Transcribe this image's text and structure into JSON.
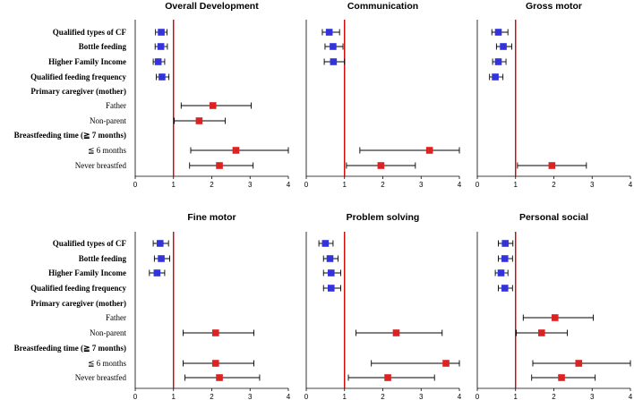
{
  "figure": {
    "categories": [
      {
        "label": "Qualified types of CF",
        "bold": true
      },
      {
        "label": "Bottle feeding",
        "bold": true
      },
      {
        "label": "Higher Family Income",
        "bold": true
      },
      {
        "label": "Qualified feeding frequency",
        "bold": true
      },
      {
        "label": "Primary caregiver (mother)",
        "bold": true
      },
      {
        "label": "Father",
        "bold": false
      },
      {
        "label": "Non-parent",
        "bold": false
      },
      {
        "label": "Breastfeeding time (≧ 7 months)",
        "bold": true
      },
      {
        "label": "≦ 6 months",
        "bold": false
      },
      {
        "label": "Never breastfed",
        "bold": false
      }
    ],
    "x_ticks": [
      "0",
      "1",
      "2",
      "3",
      "4"
    ],
    "colors": {
      "protective": "#3333dd",
      "risk": "#dd2222",
      "reference_line": "#cc0000",
      "whisker": "#000000"
    }
  },
  "chart_data": [
    {
      "type": "forest",
      "title": "Overall Development",
      "xlim": [
        0,
        4
      ],
      "reference": 1,
      "points": [
        {
          "row": 0,
          "est": 0.68,
          "lo": 0.53,
          "hi": 0.83,
          "color": "blue"
        },
        {
          "row": 1,
          "est": 0.67,
          "lo": 0.52,
          "hi": 0.84,
          "color": "blue"
        },
        {
          "row": 2,
          "est": 0.6,
          "lo": 0.47,
          "hi": 0.77,
          "color": "blue"
        },
        {
          "row": 3,
          "est": 0.7,
          "lo": 0.55,
          "hi": 0.88,
          "color": "blue"
        },
        {
          "row": 5,
          "est": 2.03,
          "lo": 1.2,
          "hi": 3.03,
          "color": "red"
        },
        {
          "row": 6,
          "est": 1.67,
          "lo": 1.02,
          "hi": 2.35,
          "color": "red"
        },
        {
          "row": 8,
          "est": 2.63,
          "lo": 1.45,
          "hi": 4.0,
          "color": "red"
        },
        {
          "row": 9,
          "est": 2.2,
          "lo": 1.42,
          "hi": 3.08,
          "color": "red"
        }
      ]
    },
    {
      "type": "forest",
      "title": "Communication",
      "xlim": [
        0,
        4
      ],
      "reference": 1,
      "points": [
        {
          "row": 0,
          "est": 0.6,
          "lo": 0.42,
          "hi": 0.87,
          "color": "blue"
        },
        {
          "row": 1,
          "est": 0.7,
          "lo": 0.49,
          "hi": 0.96,
          "color": "blue"
        },
        {
          "row": 2,
          "est": 0.71,
          "lo": 0.47,
          "hi": 1.0,
          "color": "blue"
        },
        {
          "row": 8,
          "est": 3.22,
          "lo": 1.4,
          "hi": 4.0,
          "color": "red"
        },
        {
          "row": 9,
          "est": 1.95,
          "lo": 1.05,
          "hi": 2.85,
          "color": "red"
        }
      ]
    },
    {
      "type": "forest",
      "title": "Gross motor",
      "xlim": [
        0,
        4
      ],
      "reference": 1,
      "points": [
        {
          "row": 0,
          "est": 0.55,
          "lo": 0.38,
          "hi": 0.8,
          "color": "blue"
        },
        {
          "row": 1,
          "est": 0.68,
          "lo": 0.5,
          "hi": 0.9,
          "color": "blue"
        },
        {
          "row": 2,
          "est": 0.55,
          "lo": 0.4,
          "hi": 0.75,
          "color": "blue"
        },
        {
          "row": 3,
          "est": 0.47,
          "lo": 0.32,
          "hi": 0.67,
          "color": "blue"
        },
        {
          "row": 9,
          "est": 1.95,
          "lo": 1.05,
          "hi": 2.85,
          "color": "red"
        }
      ]
    },
    {
      "type": "forest",
      "title": "Fine motor",
      "xlim": [
        0,
        4
      ],
      "reference": 1,
      "points": [
        {
          "row": 0,
          "est": 0.65,
          "lo": 0.47,
          "hi": 0.87,
          "color": "blue"
        },
        {
          "row": 1,
          "est": 0.68,
          "lo": 0.5,
          "hi": 0.9,
          "color": "blue"
        },
        {
          "row": 2,
          "est": 0.57,
          "lo": 0.37,
          "hi": 0.77,
          "color": "blue"
        },
        {
          "row": 6,
          "est": 2.1,
          "lo": 1.25,
          "hi": 3.1,
          "color": "red"
        },
        {
          "row": 8,
          "est": 2.1,
          "lo": 1.25,
          "hi": 3.1,
          "color": "red"
        },
        {
          "row": 9,
          "est": 2.2,
          "lo": 1.3,
          "hi": 3.25,
          "color": "red"
        }
      ]
    },
    {
      "type": "forest",
      "title": "Problem solving",
      "xlim": [
        0,
        4
      ],
      "reference": 1,
      "points": [
        {
          "row": 0,
          "est": 0.5,
          "lo": 0.33,
          "hi": 0.7,
          "color": "blue"
        },
        {
          "row": 1,
          "est": 0.62,
          "lo": 0.45,
          "hi": 0.83,
          "color": "blue"
        },
        {
          "row": 2,
          "est": 0.65,
          "lo": 0.45,
          "hi": 0.9,
          "color": "blue"
        },
        {
          "row": 3,
          "est": 0.65,
          "lo": 0.45,
          "hi": 0.9,
          "color": "blue"
        },
        {
          "row": 6,
          "est": 2.35,
          "lo": 1.3,
          "hi": 3.55,
          "color": "red"
        },
        {
          "row": 8,
          "est": 3.65,
          "lo": 1.7,
          "hi": 4.0,
          "color": "red"
        },
        {
          "row": 9,
          "est": 2.13,
          "lo": 1.1,
          "hi": 3.35,
          "color": "red"
        }
      ]
    },
    {
      "type": "forest",
      "title": "Personal social",
      "xlim": [
        0,
        4
      ],
      "reference": 1,
      "points": [
        {
          "row": 0,
          "est": 0.73,
          "lo": 0.55,
          "hi": 0.93,
          "color": "blue"
        },
        {
          "row": 1,
          "est": 0.72,
          "lo": 0.55,
          "hi": 0.92,
          "color": "blue"
        },
        {
          "row": 2,
          "est": 0.62,
          "lo": 0.47,
          "hi": 0.8,
          "color": "blue"
        },
        {
          "row": 3,
          "est": 0.72,
          "lo": 0.55,
          "hi": 0.92,
          "color": "blue"
        },
        {
          "row": 5,
          "est": 2.03,
          "lo": 1.2,
          "hi": 3.03,
          "color": "red"
        },
        {
          "row": 6,
          "est": 1.68,
          "lo": 1.02,
          "hi": 2.35,
          "color": "red"
        },
        {
          "row": 8,
          "est": 2.65,
          "lo": 1.45,
          "hi": 4.0,
          "color": "red"
        },
        {
          "row": 9,
          "est": 2.2,
          "lo": 1.42,
          "hi": 3.08,
          "color": "red"
        }
      ]
    }
  ]
}
